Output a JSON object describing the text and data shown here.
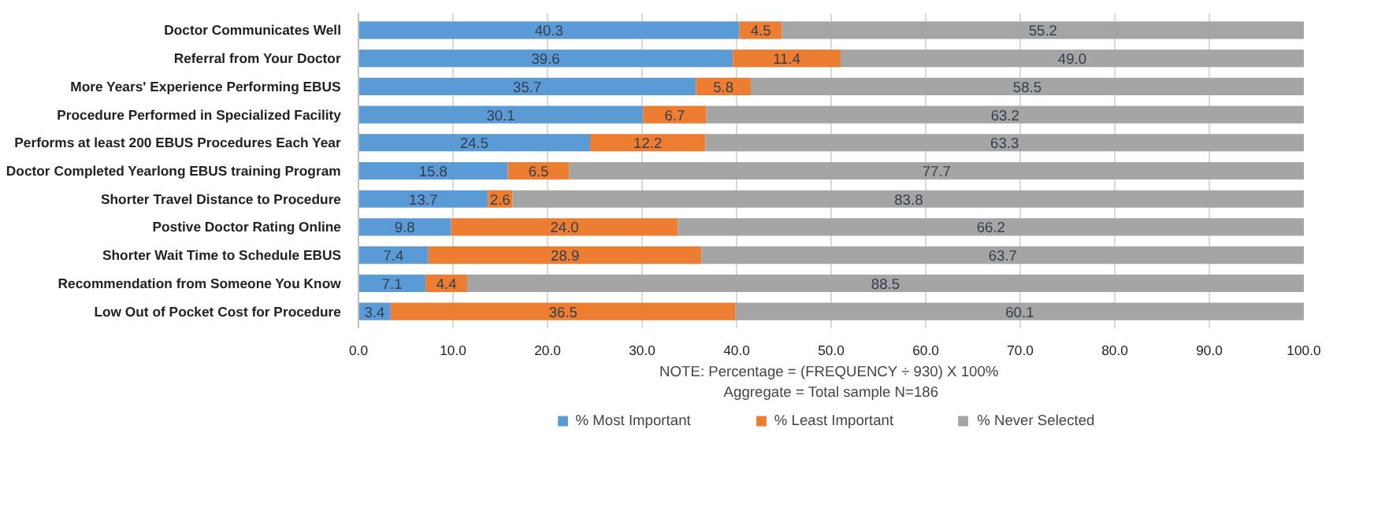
{
  "chart_data": {
    "type": "bar",
    "orientation": "horizontal",
    "stacked": true,
    "categories": [
      "Doctor Communicates Well",
      "Referral from Your Doctor",
      "More Years' Experience Performing EBUS",
      "Procedure Performed in Specialized Facility",
      "Performs at least 200 EBUS Procedures Each Year",
      "Doctor Completed Yearlong EBUS training Program",
      "Shorter Travel Distance to Procedure",
      "Postive Doctor Rating Online",
      "Shorter Wait Time to Schedule EBUS",
      "Recommendation from Someone You Know",
      "Low Out of Pocket Cost for Procedure"
    ],
    "series": [
      {
        "name": "% Most Important",
        "color": "#5b9bd5",
        "values": [
          40.3,
          39.6,
          35.7,
          30.1,
          24.5,
          15.8,
          13.7,
          9.8,
          7.4,
          7.1,
          3.4
        ],
        "value_labels": [
          "40.3",
          "39.6",
          "35.7",
          "30.1",
          "24.5",
          "15.8",
          "13.7",
          "9.8",
          "7.4",
          "7.1",
          "3.4"
        ]
      },
      {
        "name": "% Least Important",
        "color": "#ed7d31",
        "values": [
          4.5,
          11.4,
          5.8,
          6.7,
          12.2,
          6.5,
          2.6,
          24.0,
          28.9,
          4.4,
          36.5
        ],
        "value_labels": [
          "4.5",
          "11.4",
          "5.8",
          "6.7",
          "12.2",
          "6.5",
          "2.6",
          "24.0",
          "28.9",
          "4.4",
          "36.5"
        ]
      },
      {
        "name": "% Never Selected",
        "color": "#a5a5a5",
        "values": [
          55.2,
          49.0,
          58.5,
          63.2,
          63.3,
          77.7,
          83.8,
          66.2,
          63.7,
          88.5,
          60.1
        ],
        "value_labels": [
          "55.2",
          "49.0",
          "58.5",
          "63.2",
          "63.3",
          "77.7",
          "83.8",
          "66.2",
          "63.7",
          "88.5",
          "60.1"
        ]
      }
    ],
    "xlim": [
      0,
      100
    ],
    "xticks": [
      {
        "value": 0,
        "label": "0.0"
      },
      {
        "value": 10,
        "label": "10.0"
      },
      {
        "value": 20,
        "label": "20.0"
      },
      {
        "value": 30,
        "label": "30.0"
      },
      {
        "value": 40,
        "label": "40.0"
      },
      {
        "value": 50,
        "label": "50.0"
      },
      {
        "value": 60,
        "label": "60.0"
      },
      {
        "value": 70,
        "label": "70.0"
      },
      {
        "value": 80,
        "label": "80.0"
      },
      {
        "value": 90,
        "label": "90.0"
      },
      {
        "value": 100,
        "label": "100.0"
      }
    ],
    "grid": "x",
    "legend": "bottom",
    "annotations": [
      "NOTE:  Percentage = (FREQUENCY ÷ 930) X 100%",
      "Aggregate = Total sample N=186"
    ]
  }
}
